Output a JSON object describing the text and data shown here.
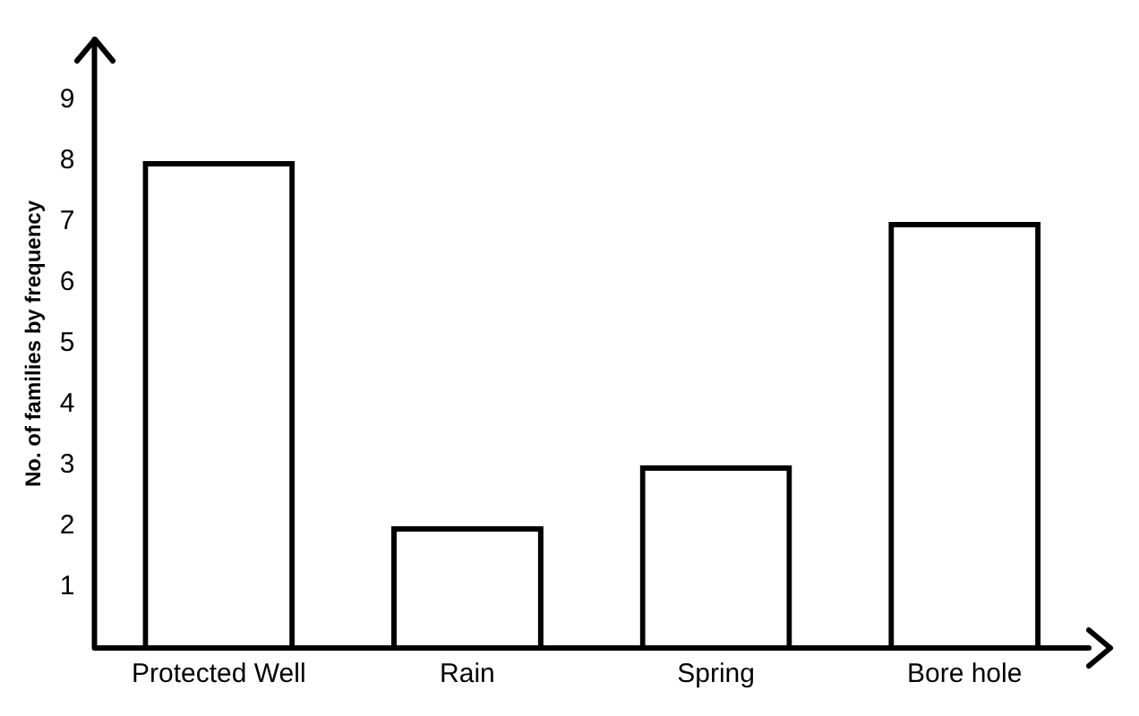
{
  "chart_data": {
    "type": "bar",
    "ylabel": "No. of families by frequency",
    "categories": [
      "Protected Well",
      "Rain",
      "Spring",
      "Bore hole"
    ],
    "values": [
      8,
      2,
      3,
      7
    ],
    "color": "#000000",
    "ylim": [
      0,
      10
    ],
    "yticks": [
      1,
      2,
      3,
      4,
      5,
      6,
      7,
      8,
      9
    ],
    "grid": false,
    "legend": false
  }
}
